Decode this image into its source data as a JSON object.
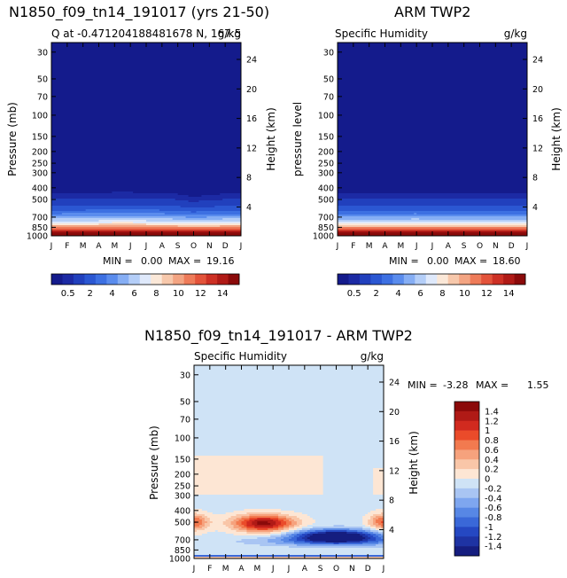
{
  "chart_data": [
    {
      "type": "heatmap",
      "title": "N1850_f09_tn14_191017 (yrs 21-50)",
      "subtitle_left": "Q at -0.471204188481678 N, 167.5",
      "subtitle_right": "g/kg",
      "ylabel": "Pressure (mb)",
      "ylabel_right": "Height (km)",
      "min_label": "MIN =",
      "min_value": "0.00",
      "max_label": "MAX =",
      "max_value": "19.16",
      "months": [
        "J",
        "F",
        "M",
        "A",
        "M",
        "J",
        "J",
        "A",
        "S",
        "O",
        "N",
        "D",
        "J"
      ],
      "pressure_ticks": [
        "30",
        "50",
        "70",
        "100",
        "150",
        "200",
        "250",
        "300",
        "400",
        "500",
        "700",
        "850",
        "1000"
      ],
      "height_ticks": [
        "24",
        "20",
        "16",
        "12",
        "8",
        "4"
      ],
      "colorbar_labels": [
        "0.5",
        "2",
        "4",
        "6",
        "8",
        "10",
        "12",
        "14"
      ],
      "moist_top_pressure": [
        305,
        300,
        300,
        295,
        290,
        290,
        295,
        300,
        310,
        340,
        320,
        305,
        305
      ],
      "surface_max": 19.16
    },
    {
      "type": "heatmap",
      "title": "ARM TWP2",
      "subtitle_left": "Specific Humidity",
      "subtitle_right": "g/kg",
      "ylabel": "pressure level",
      "ylabel_right": "Height (km)",
      "min_label": "MIN =",
      "min_value": "0.00",
      "max_label": "MAX =",
      "max_value": "18.60",
      "months": [
        "J",
        "F",
        "M",
        "A",
        "M",
        "J",
        "J",
        "A",
        "S",
        "O",
        "N",
        "D",
        "J"
      ],
      "pressure_ticks": [
        "30",
        "50",
        "70",
        "100",
        "150",
        "200",
        "250",
        "300",
        "400",
        "500",
        "700",
        "850",
        "1000"
      ],
      "height_ticks": [
        "24",
        "20",
        "16",
        "12",
        "8",
        "4"
      ],
      "colorbar_labels": [
        "0.5",
        "2",
        "4",
        "6",
        "8",
        "10",
        "12",
        "14"
      ],
      "moist_top_pressure": [
        300,
        298,
        295,
        295,
        293,
        292,
        295,
        297,
        300,
        300,
        298,
        298,
        300
      ],
      "surface_max": 18.6
    },
    {
      "type": "heatmap",
      "title": "N1850_f09_tn14_191017 - ARM TWP2",
      "subtitle_left": "Specific Humidity",
      "subtitle_right": "g/kg",
      "ylabel": "Pressure (mb)",
      "ylabel_right": "Height (km)",
      "min_label": "MIN =",
      "min_value": "-3.28",
      "max_label": "MAX =",
      "max_value": "1.55",
      "months": [
        "J",
        "F",
        "M",
        "A",
        "M",
        "J",
        "J",
        "A",
        "S",
        "O",
        "N",
        "D",
        "J"
      ],
      "pressure_ticks": [
        "30",
        "50",
        "70",
        "100",
        "150",
        "200",
        "250",
        "300",
        "400",
        "500",
        "700",
        "850",
        "1000"
      ],
      "height_ticks": [
        "24",
        "20",
        "16",
        "12",
        "8",
        "4"
      ],
      "colorbar_labels": [
        "1.4",
        "1.2",
        "1",
        "0.8",
        "0.6",
        "0.4",
        "0.2",
        "0",
        "-0.2",
        "-0.4",
        "-0.6",
        "-0.8",
        "-1",
        "-1.2",
        "-1.4"
      ],
      "difference_features": [
        {
          "kind": "positive",
          "month": 4.4,
          "pressure": 510,
          "peak": 1.55
        },
        {
          "kind": "positive",
          "month": 0.0,
          "pressure": 500,
          "peak": 0.9
        },
        {
          "kind": "positive",
          "month": 12.0,
          "pressure": 500,
          "peak": 0.9
        },
        {
          "kind": "negative",
          "month": 9.0,
          "pressure": 650,
          "peak": -3.28
        },
        {
          "kind": "upper-positive",
          "month": 3.5,
          "pressure": 190,
          "peak": 0.1
        },
        {
          "kind": "surface-positive",
          "month": 6.0,
          "pressure": 980,
          "peak": 0.5
        }
      ]
    }
  ],
  "colors": {
    "sequential": [
      "#141b8c",
      "#1c2aa4",
      "#2140bd",
      "#2b57d2",
      "#3d70e2",
      "#5a8ced",
      "#86aef4",
      "#b4cef8",
      "#dfe9fb",
      "#fbe8d8",
      "#f7c8ab",
      "#f3a482",
      "#ee7b59",
      "#e3533a",
      "#cd3024",
      "#b01a16",
      "#8b0a0a"
    ],
    "diverging": [
      "#8b0a0a",
      "#b01a16",
      "#d12a1f",
      "#ea4b2a",
      "#f27a4f",
      "#f6a27d",
      "#f9c6a8",
      "#fde6d4",
      "#cfe3f6",
      "#a9c5f3",
      "#7ea6ef",
      "#5787e5",
      "#3a68d8",
      "#2548c2",
      "#1e33a3",
      "#151d7f"
    ]
  }
}
